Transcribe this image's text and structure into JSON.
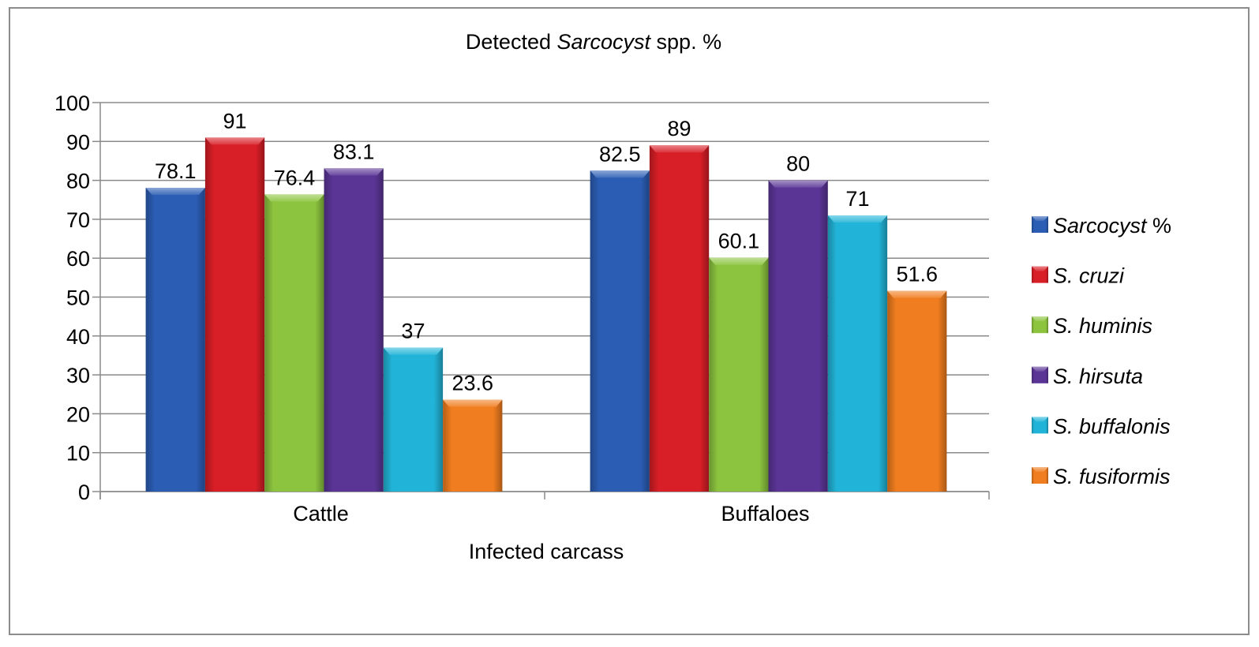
{
  "chart_data": {
    "type": "bar",
    "title_parts": [
      {
        "text": "Detected ",
        "italic": false
      },
      {
        "text": "Sarcocyst",
        "italic": true
      },
      {
        "text": " spp. %",
        "italic": false
      }
    ],
    "title": "Detected Sarcocyst spp. %",
    "xlabel": "Infected carcass",
    "ylabel": "",
    "categories": [
      "Cattle",
      "Buffaloes"
    ],
    "ylim": [
      0,
      100
    ],
    "yticks": [
      0,
      10,
      20,
      30,
      40,
      50,
      60,
      70,
      80,
      90,
      100
    ],
    "grid": true,
    "legend_position": "right",
    "series": [
      {
        "name": "Sarcocyst %",
        "color": "#2b5db4",
        "values": [
          78.1,
          82.5
        ],
        "labels": [
          "78.1",
          "82.5"
        ]
      },
      {
        "name": "S. cruzi",
        "color": "#d81e26",
        "values": [
          91,
          89
        ],
        "labels": [
          "91",
          "89"
        ]
      },
      {
        "name": "S. huminis",
        "color": "#8cc43f",
        "values": [
          76.4,
          60.1
        ],
        "labels": [
          "76.4",
          "60.1"
        ]
      },
      {
        "name": "S. hirsuta",
        "color": "#5b3596",
        "values": [
          83.1,
          80
        ],
        "labels": [
          "83.1",
          "80"
        ]
      },
      {
        "name": "S. buffalonis",
        "color": "#22b4d8",
        "values": [
          37,
          71
        ],
        "labels": [
          "37",
          "71"
        ]
      },
      {
        "name": "S. fusiformis",
        "color": "#f07d1f",
        "values": [
          23.6,
          51.6
        ],
        "labels": [
          "23.6",
          "51.6"
        ]
      }
    ]
  }
}
